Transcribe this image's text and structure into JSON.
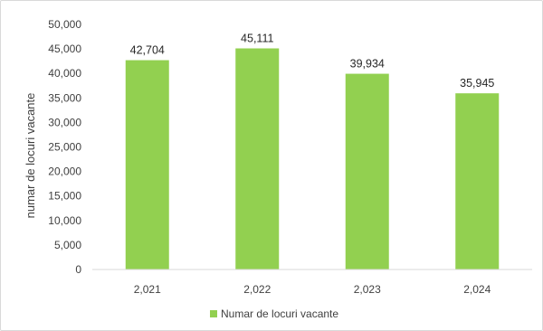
{
  "chart_data": {
    "type": "bar",
    "categories": [
      "2,021",
      "2,022",
      "2,023",
      "2,024"
    ],
    "series": [
      {
        "name": "Numar de locuri vacante",
        "values": [
          42704,
          45111,
          39934,
          35945
        ],
        "color": "#92d050"
      }
    ],
    "data_labels": [
      "42,704",
      "45,111",
      "39,934",
      "35,945"
    ],
    "yticks": [
      "0",
      "5,000",
      "10,000",
      "15,000",
      "20,000",
      "25,000",
      "30,000",
      "35,000",
      "40,000",
      "45,000",
      "50,000"
    ],
    "ylim": [
      0,
      50000
    ],
    "title": "",
    "xlabel": "",
    "ylabel": "numar de locuri vacante",
    "grid": false,
    "legend_position": "bottom"
  }
}
